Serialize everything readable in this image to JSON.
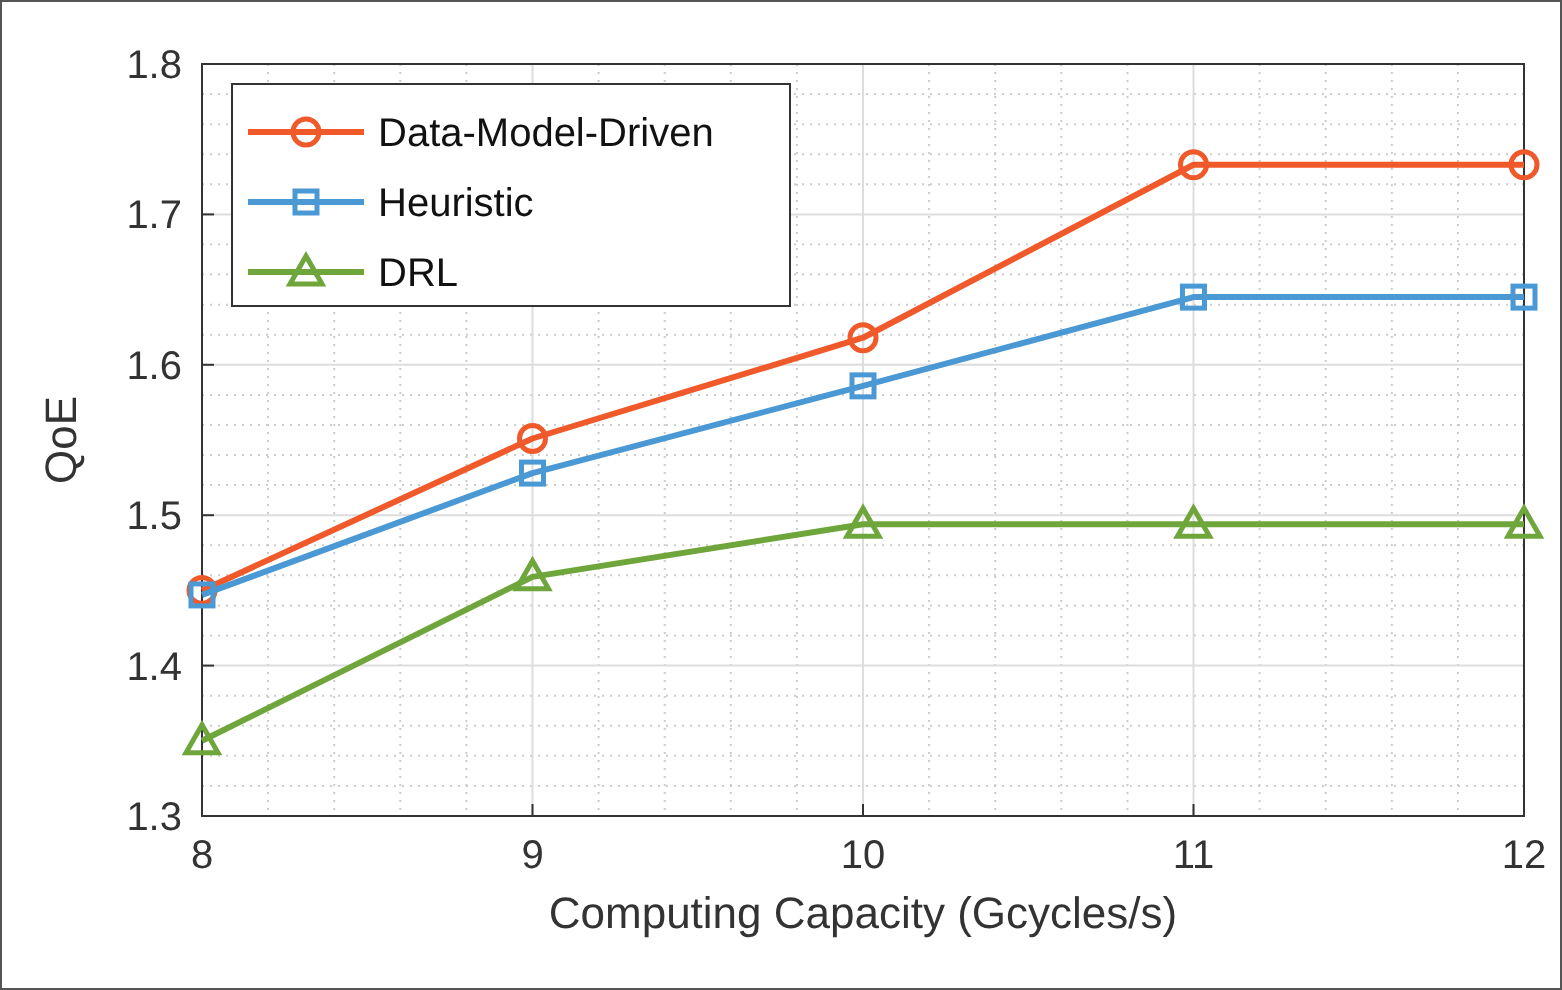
{
  "chart_data": {
    "type": "line",
    "xlabel": "Computing Capacity (Gcycles/s)",
    "ylabel": "QoE",
    "x": [
      8,
      9,
      10,
      11,
      12
    ],
    "xlim": [
      8,
      12
    ],
    "xticks": [
      8,
      9,
      10,
      11,
      12
    ],
    "ylim": [
      1.3,
      1.8
    ],
    "yticks": [
      1.3,
      1.4,
      1.5,
      1.6,
      1.7,
      1.8
    ],
    "grid": true,
    "legend": "top left",
    "line_style": "solid",
    "series": [
      {
        "name": "Data-Model-Driven",
        "color": "#f0592a",
        "marker": "circle",
        "values": [
          1.45,
          1.551,
          1.618,
          1.733,
          1.733
        ]
      },
      {
        "name": "Heuristic",
        "color": "#4a98d4",
        "marker": "square",
        "values": [
          1.447,
          1.528,
          1.586,
          1.645,
          1.645
        ]
      },
      {
        "name": "DRL",
        "color": "#6ea63c",
        "marker": "triangle",
        "values": [
          1.35,
          1.459,
          1.494,
          1.494,
          1.494
        ]
      }
    ]
  }
}
